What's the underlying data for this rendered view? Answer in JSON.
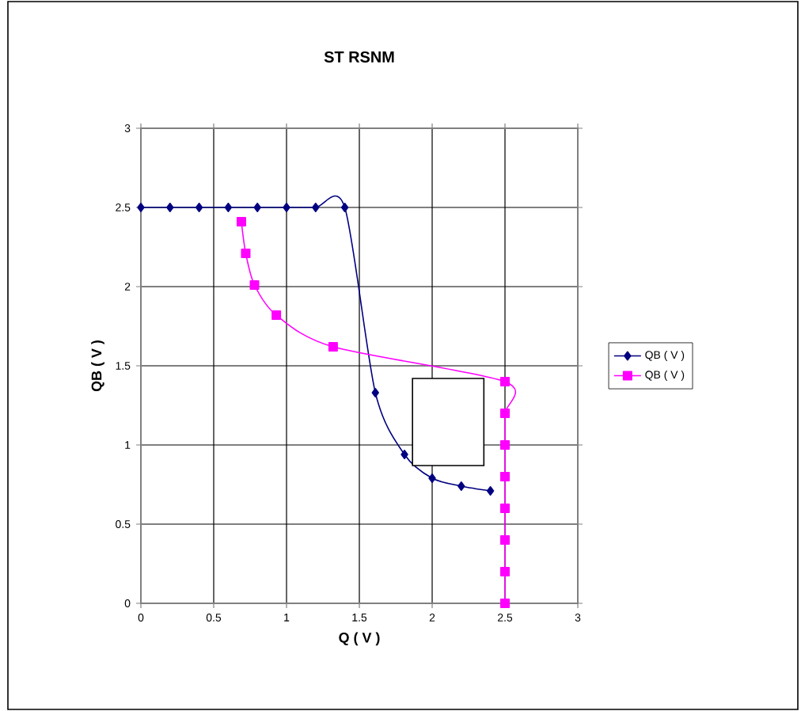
{
  "chart_data": {
    "type": "line",
    "title": "ST RSNM",
    "xlabel": "Q ( V )",
    "ylabel": "QB ( V )",
    "series": [
      {
        "name": "QB ( V )",
        "color": "#000080",
        "marker": "diamond",
        "x": [
          0,
          0.2,
          0.4,
          0.6,
          0.8,
          1.0,
          1.2,
          1.4,
          1.61,
          1.81,
          2.0,
          2.2,
          2.4
        ],
        "values": [
          2.5,
          2.5,
          2.5,
          2.5,
          2.5,
          2.5,
          2.5,
          2.5,
          1.33,
          0.94,
          0.79,
          0.74,
          0.71
        ]
      },
      {
        "name": "QB ( V )",
        "color": "#ff00ff",
        "marker": "square",
        "x": [
          0.69,
          0.72,
          0.78,
          0.93,
          1.32,
          2.5,
          2.5,
          2.5,
          2.5,
          2.5,
          2.5,
          2.5,
          2.5
        ],
        "values": [
          2.41,
          2.21,
          2.01,
          1.82,
          1.62,
          1.4,
          1.2,
          1.0,
          0.8,
          0.6,
          0.4,
          0.2,
          0
        ]
      }
    ],
    "xlim": [
      0,
      3
    ],
    "ylim": [
      0,
      3
    ],
    "xticks": [
      0,
      0.5,
      1,
      1.5,
      2,
      2.5,
      3
    ],
    "yticks": [
      0,
      0.5,
      1,
      1.5,
      2,
      2.5,
      3
    ],
    "grid": true,
    "legend": "right",
    "line_style": "solid"
  }
}
